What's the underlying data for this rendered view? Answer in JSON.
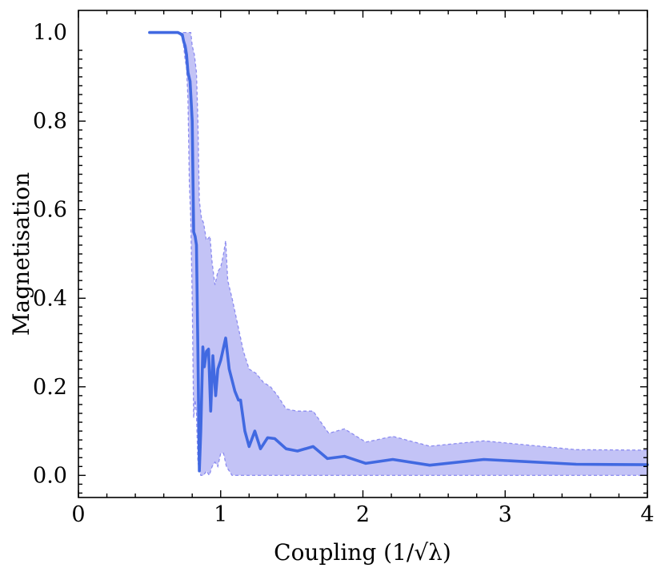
{
  "chart_data": {
    "type": "line",
    "xlabel": "Coupling (1/√λ)",
    "ylabel": "Magnetisation",
    "xlim": [
      0,
      4
    ],
    "ylim": [
      -0.05,
      1.05
    ],
    "x_ticks": [
      "0",
      "1",
      "2",
      "3",
      "4"
    ],
    "y_ticks": [
      "0.0",
      "0.2",
      "0.4",
      "0.6",
      "0.8",
      "1.0"
    ],
    "grid": false,
    "colors": {
      "line": "#4169e1",
      "band": "#b9b9f5",
      "band_edge": "#8c8cf0"
    },
    "series": [
      {
        "values": [
          [
            0.5,
            1.0
          ],
          [
            0.7,
            1.0
          ],
          [
            0.73,
            0.995
          ],
          [
            0.74,
            0.98
          ],
          [
            0.75,
            0.97
          ],
          [
            0.76,
            0.95
          ],
          [
            0.77,
            0.91
          ],
          [
            0.785,
            0.89
          ],
          [
            0.8,
            0.8
          ],
          [
            0.81,
            0.55
          ],
          [
            0.82,
            0.54
          ],
          [
            0.83,
            0.52
          ],
          [
            0.84,
            0.28
          ],
          [
            0.85,
            0.01
          ],
          [
            0.86,
            0.1
          ],
          [
            0.875,
            0.29
          ],
          [
            0.885,
            0.245
          ],
          [
            0.9,
            0.28
          ],
          [
            0.915,
            0.285
          ],
          [
            0.93,
            0.145
          ],
          [
            0.945,
            0.27
          ],
          [
            0.965,
            0.18
          ],
          [
            0.98,
            0.24
          ],
          [
            1.0,
            0.26
          ],
          [
            1.035,
            0.31
          ],
          [
            1.06,
            0.24
          ],
          [
            1.1,
            0.19
          ],
          [
            1.125,
            0.17
          ],
          [
            1.14,
            0.17
          ],
          [
            1.17,
            0.1
          ],
          [
            1.2,
            0.065
          ],
          [
            1.24,
            0.1
          ],
          [
            1.28,
            0.06
          ],
          [
            1.33,
            0.085
          ],
          [
            1.38,
            0.083
          ],
          [
            1.46,
            0.06
          ],
          [
            1.54,
            0.055
          ],
          [
            1.65,
            0.065
          ],
          [
            1.75,
            0.038
          ],
          [
            1.87,
            0.043
          ],
          [
            2.02,
            0.027
          ],
          [
            2.21,
            0.036
          ],
          [
            2.47,
            0.023
          ],
          [
            2.85,
            0.036
          ],
          [
            3.5,
            0.025
          ],
          [
            4.0,
            0.024
          ]
        ]
      }
    ],
    "band": {
      "upper": [
        [
          0.5,
          1.0
        ],
        [
          0.75,
          1.0
        ],
        [
          0.79,
          1.0
        ],
        [
          0.8,
          0.97
        ],
        [
          0.815,
          0.95
        ],
        [
          0.83,
          0.91
        ],
        [
          0.84,
          0.8
        ],
        [
          0.85,
          0.62
        ],
        [
          0.865,
          0.58
        ],
        [
          0.88,
          0.57
        ],
        [
          0.9,
          0.53
        ],
        [
          0.925,
          0.54
        ],
        [
          0.94,
          0.48
        ],
        [
          0.96,
          0.43
        ],
        [
          0.98,
          0.46
        ],
        [
          1.0,
          0.47
        ],
        [
          1.02,
          0.5
        ],
        [
          1.035,
          0.53
        ],
        [
          1.05,
          0.44
        ],
        [
          1.08,
          0.4
        ],
        [
          1.12,
          0.34
        ],
        [
          1.16,
          0.28
        ],
        [
          1.2,
          0.24
        ],
        [
          1.25,
          0.23
        ],
        [
          1.3,
          0.21
        ],
        [
          1.35,
          0.2
        ],
        [
          1.4,
          0.18
        ],
        [
          1.46,
          0.15
        ],
        [
          1.54,
          0.145
        ],
        [
          1.65,
          0.145
        ],
        [
          1.76,
          0.095
        ],
        [
          1.87,
          0.105
        ],
        [
          2.02,
          0.075
        ],
        [
          2.21,
          0.088
        ],
        [
          2.47,
          0.066
        ],
        [
          2.85,
          0.078
        ],
        [
          3.5,
          0.058
        ],
        [
          4.0,
          0.057
        ]
      ],
      "lower": [
        [
          4.0,
          0.0
        ],
        [
          1.1,
          0.0
        ],
        [
          1.08,
          0.0
        ],
        [
          1.04,
          0.02
        ],
        [
          1.02,
          0.05
        ],
        [
          1.0,
          0.05
        ],
        [
          0.98,
          0.02
        ],
        [
          0.96,
          0.03
        ],
        [
          0.94,
          0.02
        ],
        [
          0.92,
          0.0
        ],
        [
          0.9,
          0.01
        ],
        [
          0.88,
          0.0
        ],
        [
          0.86,
          0.0
        ],
        [
          0.84,
          0.03
        ],
        [
          0.83,
          0.14
        ],
        [
          0.82,
          0.17
        ],
        [
          0.81,
          0.13
        ],
        [
          0.8,
          0.4
        ],
        [
          0.79,
          0.58
        ],
        [
          0.78,
          0.66
        ],
        [
          0.77,
          0.85
        ],
        [
          0.76,
          0.92
        ],
        [
          0.75,
          0.94
        ],
        [
          0.74,
          0.97
        ],
        [
          0.73,
          0.99
        ],
        [
          0.7,
          1.0
        ],
        [
          0.5,
          1.0
        ]
      ]
    }
  }
}
